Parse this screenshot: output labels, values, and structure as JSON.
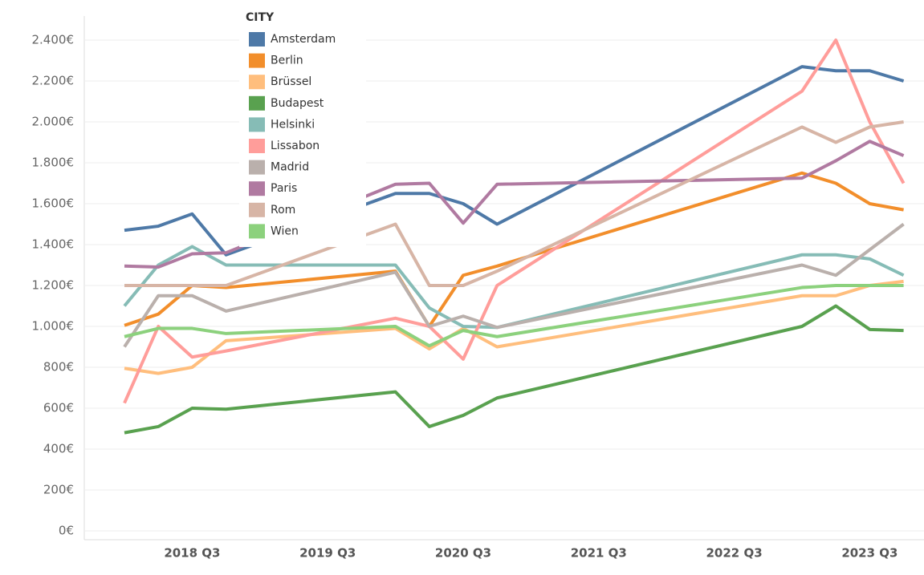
{
  "chart_data": {
    "type": "line",
    "categories": [
      null,
      null,
      "2018 Q3",
      null,
      null,
      null,
      "2019 Q3",
      null,
      null,
      null,
      "2020 Q3",
      null,
      null,
      null,
      "2021 Q3",
      null,
      null,
      null,
      "2022 Q3",
      null,
      null,
      null,
      "2023 Q3",
      null
    ],
    "connect_gaps": true,
    "legend_title": "CITY",
    "legend": "top-left",
    "grid": true,
    "ylim": [
      0,
      2400
    ],
    "yticks": [
      {
        "value": 0,
        "label": "0€"
      },
      {
        "value": 200,
        "label": "200€"
      },
      {
        "value": 400,
        "label": "400€"
      },
      {
        "value": 600,
        "label": "600€"
      },
      {
        "value": 800,
        "label": "800€"
      },
      {
        "value": 1000,
        "label": "1.000€"
      },
      {
        "value": 1200,
        "label": "1.200€"
      },
      {
        "value": 1400,
        "label": "1.400€"
      },
      {
        "value": 1600,
        "label": "1.600€"
      },
      {
        "value": 1800,
        "label": "1.800€"
      },
      {
        "value": 2000,
        "label": "2.000€"
      },
      {
        "value": 2200,
        "label": "2.200€"
      },
      {
        "value": 2400,
        "label": "2.400€"
      }
    ],
    "series": [
      {
        "name": "Amsterdam",
        "color": "#4e79a7",
        "values": [
          1470,
          1490,
          1550,
          1350,
          null,
          null,
          null,
          null,
          1650,
          1650,
          1600,
          1500,
          null,
          null,
          null,
          null,
          null,
          null,
          null,
          null,
          2270,
          2250,
          2250,
          2200
        ]
      },
      {
        "name": "Berlin",
        "color": "#f28e2b",
        "values": [
          1005,
          1060,
          1200,
          1190,
          null,
          null,
          null,
          null,
          1270,
          1000,
          1250,
          1295,
          null,
          null,
          null,
          null,
          null,
          null,
          null,
          null,
          1750,
          1700,
          1600,
          1570
        ]
      },
      {
        "name": "Brüssel",
        "color": "#ffbe7d",
        "values": [
          795,
          770,
          800,
          930,
          null,
          null,
          null,
          null,
          990,
          890,
          990,
          900,
          null,
          null,
          null,
          null,
          null,
          null,
          null,
          null,
          1150,
          1150,
          1200,
          1220
        ]
      },
      {
        "name": "Budapest",
        "color": "#59a14f",
        "values": [
          480,
          510,
          600,
          595,
          null,
          null,
          null,
          null,
          680,
          510,
          565,
          650,
          null,
          null,
          null,
          null,
          null,
          null,
          null,
          null,
          1000,
          1100,
          985,
          980
        ]
      },
      {
        "name": "Helsinki",
        "color": "#86bcb6",
        "values": [
          1100,
          1300,
          1390,
          1300,
          null,
          null,
          null,
          null,
          1300,
          1090,
          1000,
          995,
          null,
          null,
          null,
          null,
          null,
          null,
          null,
          null,
          1350,
          1350,
          1330,
          1250
        ]
      },
      {
        "name": "Lissabon",
        "color": "#ff9d9a",
        "values": [
          625,
          1000,
          850,
          880,
          null,
          null,
          null,
          null,
          1040,
          1000,
          840,
          1200,
          null,
          null,
          null,
          null,
          null,
          null,
          null,
          null,
          2150,
          2400,
          2000,
          1700
        ]
      },
      {
        "name": "Madrid",
        "color": "#bab0ac",
        "values": [
          900,
          1150,
          1150,
          1075,
          null,
          null,
          null,
          null,
          1265,
          1000,
          1050,
          995,
          null,
          null,
          null,
          null,
          null,
          null,
          null,
          null,
          1300,
          1250,
          1375,
          1500
        ]
      },
      {
        "name": "Paris",
        "color": "#b07aa1",
        "values": [
          1295,
          1290,
          1355,
          1360,
          null,
          null,
          null,
          null,
          1695,
          1700,
          1505,
          1695,
          null,
          null,
          null,
          null,
          null,
          null,
          null,
          null,
          1725,
          1810,
          1905,
          1835
        ]
      },
      {
        "name": "Rom",
        "color": "#d7b5a6",
        "values": [
          1200,
          1200,
          1200,
          1200,
          null,
          null,
          null,
          null,
          1500,
          1200,
          1200,
          1270,
          null,
          null,
          null,
          null,
          null,
          null,
          null,
          null,
          1975,
          1900,
          1975,
          2000
        ]
      },
      {
        "name": "Wien",
        "color": "#8cd17d",
        "values": [
          950,
          990,
          990,
          965,
          null,
          null,
          null,
          null,
          1000,
          905,
          980,
          950,
          null,
          null,
          null,
          null,
          null,
          null,
          null,
          null,
          1190,
          1200,
          1200,
          1200
        ]
      }
    ]
  }
}
